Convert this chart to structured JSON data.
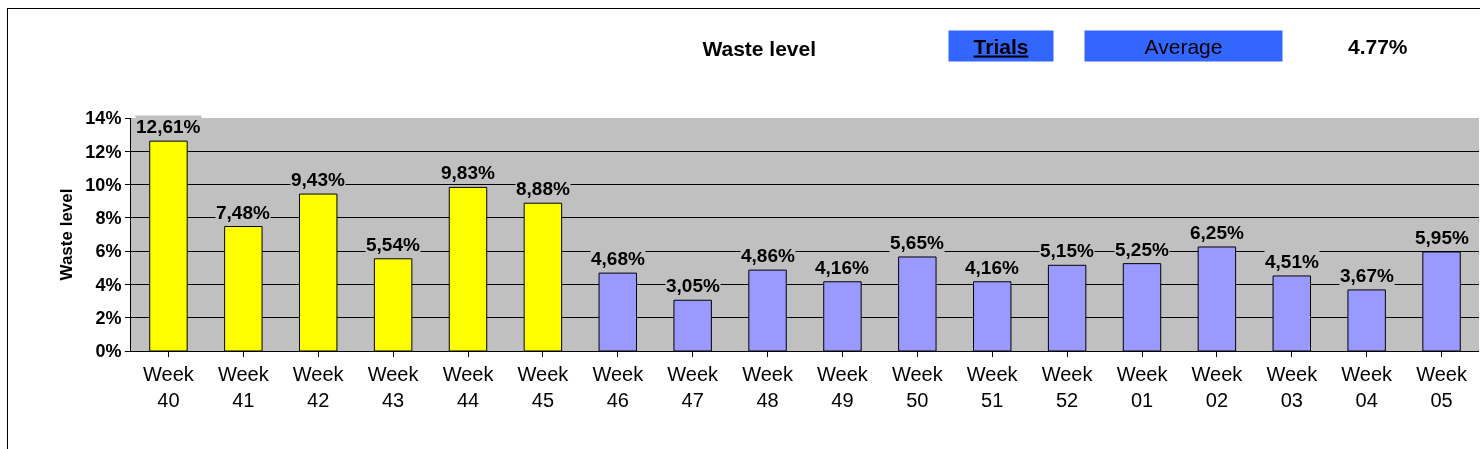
{
  "chart_data": {
    "type": "bar",
    "title": "Waste level",
    "ylabel": "Waste level",
    "categories": [
      "Week 40",
      "Week 41",
      "Week 42",
      "Week 43",
      "Week 44",
      "Week 45",
      "Week 46",
      "Week 47",
      "Week 48",
      "Week 49",
      "Week 50",
      "Week 51",
      "Week 52",
      "Week 01",
      "Week 02",
      "Week 03",
      "Week 04",
      "Week 05"
    ],
    "values": [
      12.61,
      7.48,
      9.43,
      5.54,
      9.83,
      8.88,
      4.68,
      3.05,
      4.86,
      4.16,
      5.65,
      4.16,
      5.15,
      5.25,
      6.25,
      4.51,
      3.67,
      5.95
    ],
    "value_labels": [
      "12,61%",
      "7,48%",
      "9,43%",
      "5,54%",
      "9,83%",
      "8,88%",
      "4,68%",
      "3,05%",
      "4,86%",
      "4,16%",
      "5,65%",
      "4,16%",
      "5,15%",
      "5,25%",
      "6,25%",
      "4,51%",
      "3,67%",
      "5,95%"
    ],
    "colors": [
      "#ffff00",
      "#ffff00",
      "#ffff00",
      "#ffff00",
      "#ffff00",
      "#ffff00",
      "#9999ff",
      "#9999ff",
      "#9999ff",
      "#9999ff",
      "#9999ff",
      "#9999ff",
      "#9999ff",
      "#9999ff",
      "#9999ff",
      "#9999ff",
      "#9999ff",
      "#9999ff"
    ],
    "ylim": [
      0,
      14
    ],
    "yticks": [
      {
        "value": 0,
        "label": "0%"
      },
      {
        "value": 2,
        "label": "2%"
      },
      {
        "value": 4,
        "label": "4%"
      },
      {
        "value": 6,
        "label": "6%"
      },
      {
        "value": 8,
        "label": "8%"
      },
      {
        "value": 10,
        "label": "10%"
      },
      {
        "value": 12,
        "label": "12%"
      },
      {
        "value": 14,
        "label": "14%"
      }
    ],
    "grid": "y",
    "annotations": [
      "Trials",
      "Average",
      "4.77%"
    ]
  }
}
